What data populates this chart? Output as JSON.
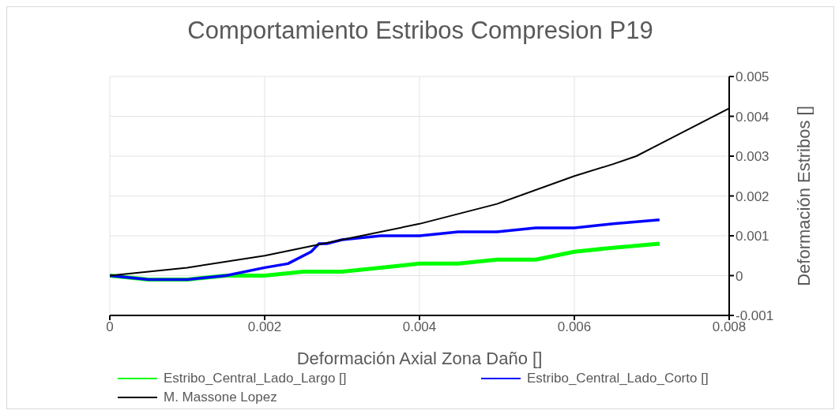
{
  "chart_data": {
    "type": "line",
    "title": "Comportamiento Estribos Compresion P19",
    "xlabel": "Deformación Axial Zona Daño []",
    "y2label": "Deformación Estribos []",
    "xlim": [
      0,
      0.008
    ],
    "xticks": [
      0,
      0.002,
      0.004,
      0.006,
      0.008
    ],
    "y2lim": [
      -0.001,
      0.005
    ],
    "y2ticks": [
      -0.001,
      0,
      0.001,
      0.002,
      0.003,
      0.004,
      0.005
    ],
    "grid": true,
    "legend": "bottom",
    "marker": "none",
    "series": [
      {
        "name": "Estribo_Central_Lado_Largo []",
        "color": "#00ff00",
        "axis": "y2",
        "x": [
          0,
          0.0005,
          0.001,
          0.0015,
          0.002,
          0.0025,
          0.003,
          0.0035,
          0.004,
          0.0045,
          0.005,
          0.0055,
          0.006,
          0.0065,
          0.0071
        ],
        "values": [
          0,
          -0.0001,
          -0.0001,
          0,
          0,
          0.0001,
          0.0001,
          0.0002,
          0.0003,
          0.0003,
          0.0004,
          0.0004,
          0.0006,
          0.0007,
          0.0008
        ]
      },
      {
        "name": "Estribo_Central_Lado_Corto []",
        "color": "#0000ff",
        "axis": "y2",
        "x": [
          0,
          0.0005,
          0.001,
          0.0015,
          0.002,
          0.0023,
          0.0026,
          0.0027,
          0.0028,
          0.003,
          0.0035,
          0.004,
          0.0045,
          0.005,
          0.0055,
          0.006,
          0.0065,
          0.0071
        ],
        "values": [
          0,
          -0.0001,
          -0.0001,
          0,
          0.0002,
          0.0003,
          0.0006,
          0.0008,
          0.0008,
          0.0009,
          0.001,
          0.001,
          0.0011,
          0.0011,
          0.0012,
          0.0012,
          0.0013,
          0.0014
        ]
      },
      {
        "name": "M. Massone Lopez",
        "color": "#000000",
        "axis": "y2",
        "x": [
          0,
          0.001,
          0.002,
          0.003,
          0.004,
          0.005,
          0.006,
          0.0065,
          0.0068,
          0.007,
          0.0075,
          0.008
        ],
        "values": [
          0,
          0.0002,
          0.0005,
          0.0009,
          0.0013,
          0.0018,
          0.0025,
          0.0028,
          0.003,
          0.0032,
          0.0037,
          0.0042
        ]
      }
    ]
  }
}
